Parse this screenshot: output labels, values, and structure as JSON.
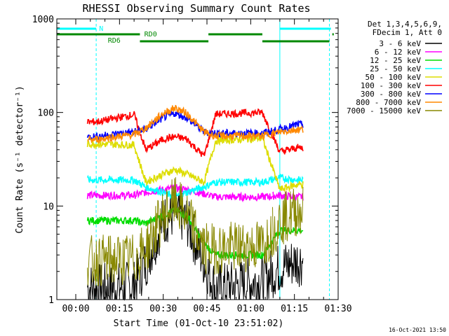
{
  "chart_data": {
    "type": "line",
    "title": "RHESSI Observing Summary Count Rates",
    "xlabel": "Start Time (01-Oct-10 23:51:02)",
    "ylabel": "Count Rate (s⁻¹ detector⁻¹)",
    "yscale": "log",
    "ylim": [
      1,
      1000
    ],
    "xlim_minutes": [
      -6.5,
      90
    ],
    "x_tick_labels": [
      "00:00",
      "00:15",
      "00:30",
      "00:45",
      "01:00",
      "01:15",
      "01:30"
    ],
    "x_tick_minutes": [
      0,
      15,
      30,
      45,
      60,
      75,
      90
    ],
    "y_tick_labels": [
      "1",
      "10",
      "100",
      "1000"
    ],
    "y_tick_values": [
      1,
      10,
      100,
      1000
    ],
    "grid": false,
    "legend_title_lines": [
      "Det 1,3,4,5,6,9,",
      "FDecim 1, Att 0"
    ],
    "legend_position": "right",
    "timestamp": "16-Oct-2021 13:50",
    "data_intervals": [
      [
        4,
        22
      ],
      [
        22,
        45.5
      ],
      [
        45.5,
        67.5
      ],
      [
        67.5,
        78
      ]
    ],
    "series": [
      {
        "name": "3 - 6 keV",
        "color": "#000000",
        "values": [
          1.4,
          1.3,
          1.4,
          2.5,
          7,
          8.5,
          7,
          2.5,
          1.3,
          1.6,
          2.2,
          2.6
        ]
      },
      {
        "name": "6 - 12 keV",
        "color": "#ff00ff",
        "values": [
          13,
          13,
          13,
          14,
          15,
          15.5,
          15,
          13.5,
          12.5,
          12.5,
          13,
          12.5
        ]
      },
      {
        "name": "12 - 25 keV",
        "color": "#00dd00",
        "values": [
          7,
          7,
          7,
          6.5,
          8,
          9,
          8,
          4,
          3,
          3,
          5.5,
          5.5
        ]
      },
      {
        "name": "25 - 50 keV",
        "color": "#00ffff",
        "values": [
          19,
          19,
          19,
          16,
          14,
          12.5,
          14,
          16,
          18,
          18,
          20,
          19
        ]
      },
      {
        "name": "50 - 100 keV",
        "color": "#dddd00",
        "values": [
          46,
          46,
          45,
          18,
          22,
          24.5,
          22,
          18,
          50,
          53,
          15,
          17
        ]
      },
      {
        "name": "100 - 300 keV",
        "color": "#ff0000",
        "values": [
          78,
          80,
          95,
          40,
          52,
          55,
          52,
          34,
          96,
          100,
          38,
          42
        ]
      },
      {
        "name": "300 - 800 keV",
        "color": "#0000ff",
        "values": [
          54,
          56,
          62,
          66,
          88,
          98,
          88,
          62,
          60,
          60,
          66,
          74
        ]
      },
      {
        "name": "800 - 7000 keV",
        "color": "#ff8800",
        "values": [
          50,
          52,
          58,
          68,
          98,
          112,
          98,
          62,
          56,
          56,
          62,
          66
        ]
      },
      {
        "name": "7000 - 15000 keV",
        "color": "#888800",
        "values": [
          2.6,
          2.6,
          2.7,
          3.5,
          8,
          11,
          8,
          3.5,
          3.5,
          3.8,
          7,
          9
        ]
      }
    ],
    "sample_minutes": [
      2,
      8,
      20,
      24,
      30,
      34,
      38,
      44,
      48,
      64,
      70,
      76
    ],
    "vertical_markers": [
      {
        "label": "",
        "minute": -6.5,
        "color": "#00ffff",
        "style": "solid"
      },
      {
        "label": "",
        "minute": 7,
        "color": "#00ffff",
        "style": "dashed"
      },
      {
        "label": "",
        "minute": 70,
        "color": "#00ffff",
        "style": "solid"
      },
      {
        "label": "",
        "minute": 87,
        "color": "#00ffff",
        "style": "dashed"
      }
    ],
    "state_bars": [
      {
        "label": "N",
        "color": "#00ffff",
        "segments": [
          [
            -6.5,
            7
          ],
          [
            70,
            87.5
          ]
        ]
      },
      {
        "label": "RD0",
        "color": "#008800",
        "segments": [
          [
            -6.5,
            22
          ],
          [
            45.5,
            64
          ],
          [
            88,
            88.5
          ]
        ]
      },
      {
        "label": "RD6",
        "color": "#008800",
        "segments": [
          [
            22,
            45.5
          ],
          [
            64,
            87
          ]
        ]
      }
    ]
  }
}
